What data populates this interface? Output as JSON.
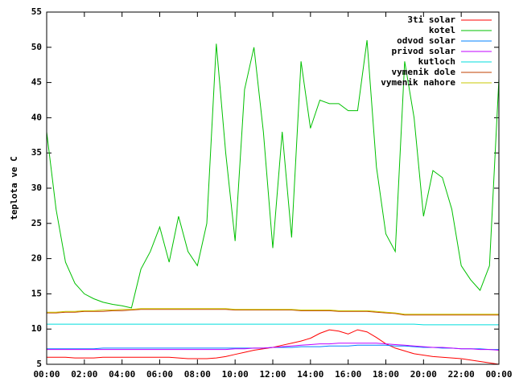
{
  "chart_data": {
    "type": "line",
    "y_label": "teplota ve C",
    "x": [
      0,
      0.5,
      1,
      1.5,
      2,
      2.5,
      3,
      3.5,
      4,
      4.5,
      5,
      5.5,
      6,
      6.5,
      7,
      7.5,
      8,
      8.5,
      9,
      9.5,
      10,
      10.5,
      11,
      11.5,
      12,
      12.5,
      13,
      13.5,
      14,
      14.5,
      15,
      15.5,
      16,
      16.5,
      17,
      17.5,
      18,
      18.5,
      19,
      19.5,
      20,
      20.5,
      21,
      21.5,
      22,
      22.5,
      23,
      23.5,
      24
    ],
    "xlim": [
      0,
      24
    ],
    "xticks": [
      {
        "value": 0,
        "label": "00:00"
      },
      {
        "value": 2,
        "label": "02:00"
      },
      {
        "value": 4,
        "label": "04:00"
      },
      {
        "value": 6,
        "label": "06:00"
      },
      {
        "value": 8,
        "label": "08:00"
      },
      {
        "value": 10,
        "label": "10:00"
      },
      {
        "value": 12,
        "label": "12:00"
      },
      {
        "value": 14,
        "label": "14:00"
      },
      {
        "value": 16,
        "label": "16:00"
      },
      {
        "value": 18,
        "label": "18:00"
      },
      {
        "value": 20,
        "label": "20:00"
      },
      {
        "value": 22,
        "label": "22:00"
      },
      {
        "value": 24,
        "label": "00:00"
      }
    ],
    "ylim": [
      5,
      55
    ],
    "yticks": [
      5,
      10,
      15,
      20,
      25,
      30,
      35,
      40,
      45,
      50,
      55
    ],
    "legend": "top-right",
    "series": [
      {
        "name": "3ti solar",
        "color": "#ff0000",
        "values": [
          6,
          6,
          6,
          5.9,
          5.9,
          5.9,
          6,
          6,
          6,
          6,
          6,
          6,
          6,
          6,
          5.9,
          5.8,
          5.8,
          5.8,
          5.9,
          6.1,
          6.4,
          6.7,
          7,
          7.2,
          7.4,
          7.7,
          8,
          8.3,
          8.7,
          9.4,
          9.9,
          9.7,
          9.3,
          9.9,
          9.6,
          8.8,
          7.9,
          7.3,
          6.9,
          6.5,
          6.3,
          6.1,
          6,
          5.9,
          5.8,
          5.6,
          5.4,
          5.2,
          5
        ]
      },
      {
        "name": "kotel",
        "color": "#00c000",
        "values": [
          38,
          27,
          19.5,
          16.5,
          15,
          14.3,
          13.8,
          13.5,
          13.3,
          13,
          18.5,
          21,
          24.5,
          19.5,
          26,
          21,
          19,
          25,
          50.5,
          35,
          22.5,
          44,
          50,
          38,
          21.5,
          38,
          23,
          48,
          38.5,
          42.5,
          42,
          42,
          41,
          41,
          51,
          33,
          23.5,
          21,
          48,
          40,
          26,
          32.5,
          31.5,
          27,
          19,
          17,
          15.5,
          19,
          45.5
        ]
      },
      {
        "name": "odvod solar",
        "color": "#0080ff",
        "values": [
          7.2,
          7.2,
          7.2,
          7.2,
          7.2,
          7.2,
          7.3,
          7.3,
          7.3,
          7.3,
          7.3,
          7.3,
          7.3,
          7.3,
          7.3,
          7.3,
          7.3,
          7.3,
          7.3,
          7.3,
          7.3,
          7.3,
          7.3,
          7.3,
          7.4,
          7.4,
          7.4,
          7.5,
          7.5,
          7.5,
          7.6,
          7.6,
          7.6,
          7.7,
          7.7,
          7.7,
          7.7,
          7.6,
          7.6,
          7.5,
          7.4,
          7.4,
          7.3,
          7.3,
          7.2,
          7.2,
          7.2,
          7.1,
          7.1
        ]
      },
      {
        "name": "privod solar",
        "color": "#c000ff",
        "values": [
          7.1,
          7.1,
          7.1,
          7.1,
          7.1,
          7.1,
          7.1,
          7.1,
          7.1,
          7.1,
          7.1,
          7.1,
          7.1,
          7.1,
          7.1,
          7.1,
          7.1,
          7.1,
          7.1,
          7.1,
          7.2,
          7.2,
          7.3,
          7.3,
          7.4,
          7.5,
          7.6,
          7.7,
          7.8,
          7.9,
          7.9,
          8,
          8,
          8,
          8,
          8,
          7.9,
          7.8,
          7.7,
          7.6,
          7.5,
          7.4,
          7.4,
          7.3,
          7.2,
          7.2,
          7.1,
          7.1,
          7
        ]
      },
      {
        "name": "kutloch",
        "color": "#00dddd",
        "values": [
          10.7,
          10.7,
          10.7,
          10.7,
          10.7,
          10.7,
          10.7,
          10.7,
          10.7,
          10.7,
          10.7,
          10.7,
          10.7,
          10.7,
          10.7,
          10.7,
          10.7,
          10.7,
          10.7,
          10.7,
          10.7,
          10.7,
          10.7,
          10.7,
          10.7,
          10.7,
          10.7,
          10.7,
          10.7,
          10.7,
          10.7,
          10.7,
          10.7,
          10.7,
          10.7,
          10.7,
          10.7,
          10.7,
          10.7,
          10.7,
          10.6,
          10.6,
          10.6,
          10.6,
          10.6,
          10.6,
          10.6,
          10.6,
          10.6
        ]
      },
      {
        "name": "vymenik dole",
        "color": "#c04000",
        "values": [
          12.3,
          12.3,
          12.4,
          12.4,
          12.5,
          12.5,
          12.5,
          12.6,
          12.6,
          12.7,
          12.8,
          12.8,
          12.8,
          12.8,
          12.8,
          12.8,
          12.8,
          12.8,
          12.8,
          12.8,
          12.7,
          12.7,
          12.7,
          12.7,
          12.7,
          12.7,
          12.7,
          12.6,
          12.6,
          12.6,
          12.6,
          12.5,
          12.5,
          12.5,
          12.5,
          12.4,
          12.3,
          12.2,
          12,
          12,
          12,
          12,
          12,
          12,
          12,
          12,
          12,
          12,
          12
        ]
      },
      {
        "name": "vymenik nahore",
        "color": "#c8c800",
        "values": [
          12.4,
          12.4,
          12.5,
          12.5,
          12.6,
          12.6,
          12.7,
          12.7,
          12.8,
          12.8,
          12.9,
          12.9,
          12.9,
          12.9,
          12.9,
          12.9,
          12.9,
          12.9,
          12.9,
          12.9,
          12.8,
          12.8,
          12.8,
          12.8,
          12.8,
          12.8,
          12.8,
          12.7,
          12.7,
          12.7,
          12.7,
          12.6,
          12.6,
          12.6,
          12.6,
          12.5,
          12.4,
          12.3,
          12.1,
          12.1,
          12.1,
          12.1,
          12.1,
          12.1,
          12.1,
          12.1,
          12.1,
          12.1,
          12.1
        ]
      }
    ]
  }
}
